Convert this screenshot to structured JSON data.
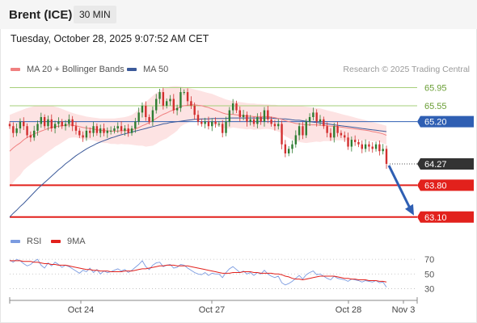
{
  "header": {
    "instrument": "Brent (ICE)",
    "timeframe": "30 MIN",
    "timestamp": "Tuesday, October 28, 2025 9:07:52 AM CET"
  },
  "legend": {
    "ma20": "MA 20 + Bollinger Bands",
    "ma50": "MA 50",
    "credit": "Research © 2025 Trading Central",
    "rsi": "RSI",
    "ma9": "9MA"
  },
  "colors": {
    "ma20": "#f08080",
    "ma50": "#3c5a9a",
    "bollinger_fill": "#fde0e0",
    "resistance": "#a6cf7a",
    "pivot": "#2f5fb3",
    "support": "#e2211c",
    "last": "#333333",
    "candle_up": "#2e7d32",
    "candle_down": "#d32f2f",
    "rsi": "#7b9be0",
    "rsi_ma": "#e2211c",
    "arrow": "#2f5fb3"
  },
  "chart_data": [
    {
      "type": "candlestick",
      "ylim": [
        62.9,
        66.1
      ],
      "x_ticks": [
        "Oct 24",
        "Oct 27",
        "Oct 28",
        "Nov 3"
      ],
      "levels": [
        {
          "name": "resistance-2",
          "value": 65.95,
          "label": "65.95",
          "style": "resistance"
        },
        {
          "name": "resistance-1",
          "value": 65.55,
          "label": "65.55",
          "style": "resistance"
        },
        {
          "name": "pivot",
          "value": 65.2,
          "label": "65.20",
          "style": "pivot"
        },
        {
          "name": "last-price",
          "value": 64.27,
          "label": "64.27",
          "style": "last"
        },
        {
          "name": "support-1",
          "value": 63.8,
          "label": "63.80",
          "style": "support"
        },
        {
          "name": "support-2",
          "value": 63.1,
          "label": "63.10",
          "style": "support"
        }
      ],
      "close": [
        65.1,
        64.95,
        65.05,
        65.2,
        65.1,
        64.9,
        64.85,
        65.0,
        65.15,
        65.3,
        65.1,
        65.25,
        65.05,
        65.15,
        65.2,
        65.1,
        65.15,
        65.25,
        65.1,
        65.0,
        64.9,
        64.85,
        65.0,
        64.95,
        65.1,
        64.95,
        65.05,
        64.95,
        65.0,
        65.0,
        65.05,
        65.1,
        65.0,
        65.05,
        64.95,
        65.05,
        65.2,
        65.4,
        65.55,
        65.3,
        65.2,
        65.45,
        65.7,
        65.85,
        65.55,
        65.65,
        65.7,
        65.45,
        65.5,
        65.85,
        65.85,
        65.65,
        65.55,
        65.35,
        65.2,
        65.15,
        65.2,
        65.1,
        65.2,
        65.15,
        65.15,
        64.95,
        65.2,
        65.45,
        65.6,
        65.45,
        65.3,
        65.35,
        65.2,
        65.25,
        65.15,
        65.3,
        65.2,
        65.45,
        65.25,
        65.15,
        65.1,
        65.15,
        64.7,
        64.5,
        64.6,
        64.7,
        64.9,
        65.1,
        64.9,
        65.2,
        65.3,
        65.4,
        65.2,
        65.25,
        65.1,
        64.95,
        64.85,
        65.1,
        64.95,
        64.9,
        64.85,
        64.65,
        64.8,
        64.75,
        64.7,
        64.6,
        64.7,
        64.65,
        64.6,
        64.7,
        64.55,
        64.6,
        64.27
      ],
      "ma20": [
        64.55,
        64.62,
        64.68,
        64.73,
        64.8,
        64.85,
        64.89,
        64.93,
        64.96,
        64.99,
        65.02,
        65.05,
        65.07,
        65.09,
        65.1,
        65.11,
        65.12,
        65.13,
        65.12,
        65.11,
        65.09,
        65.07,
        65.06,
        65.05,
        65.04,
        65.02,
        65.01,
        65.0,
        65.0,
        64.99,
        64.99,
        64.99,
        65.0,
        65.0,
        65.01,
        65.02,
        65.04,
        65.07,
        65.11,
        65.14,
        65.18,
        65.22,
        65.27,
        65.32,
        65.36,
        65.39,
        65.43,
        65.46,
        65.49,
        65.53,
        65.55,
        65.56,
        65.57,
        65.57,
        65.56,
        65.55,
        65.53,
        65.51,
        65.48,
        65.45,
        65.42,
        65.39,
        65.37,
        65.36,
        65.36,
        65.35,
        65.34,
        65.33,
        65.32,
        65.32,
        65.31,
        65.31,
        65.31,
        65.31,
        65.31,
        65.3,
        65.29,
        65.27,
        65.25,
        65.22,
        65.2,
        65.18,
        65.16,
        65.15,
        65.14,
        65.13,
        65.13,
        65.13,
        65.13,
        65.12,
        65.12,
        65.11,
        65.1,
        65.1,
        65.09,
        65.08,
        65.07,
        65.06,
        65.05,
        65.04,
        65.03,
        65.02,
        65.01,
        65.0,
        64.98,
        64.97,
        64.95,
        64.93,
        64.9
      ],
      "bb_upper": [
        65.35,
        65.38,
        65.41,
        65.44,
        65.47,
        65.5,
        65.52,
        65.54,
        65.55,
        65.56,
        65.56,
        65.56,
        65.55,
        65.53,
        65.51,
        65.48,
        65.45,
        65.42,
        65.39,
        65.37,
        65.35,
        65.33,
        65.31,
        65.3,
        65.29,
        65.28,
        65.27,
        65.27,
        65.27,
        65.27,
        65.27,
        65.28,
        65.29,
        65.3,
        65.32,
        65.35,
        65.4,
        65.47,
        65.55,
        65.63,
        65.7,
        65.77,
        65.83,
        65.88,
        65.92,
        65.95,
        65.97,
        65.98,
        65.98,
        65.97,
        65.96,
        65.95,
        65.93,
        65.91,
        65.89,
        65.87,
        65.85,
        65.83,
        65.81,
        65.78,
        65.75,
        65.72,
        65.69,
        65.67,
        65.65,
        65.64,
        65.63,
        65.62,
        65.61,
        65.6,
        65.6,
        65.59,
        65.59,
        65.58,
        65.58,
        65.57,
        65.57,
        65.56,
        65.56,
        65.56,
        65.56,
        65.56,
        65.55,
        65.55,
        65.54,
        65.53,
        65.52,
        65.51,
        65.5,
        65.49,
        65.47,
        65.45,
        65.43,
        65.41,
        65.39,
        65.37,
        65.35,
        65.33,
        65.31,
        65.29,
        65.27,
        65.25,
        65.23,
        65.21,
        65.19,
        65.17,
        65.15,
        65.13,
        65.11
      ],
      "bb_lower": [
        63.75,
        63.86,
        63.95,
        64.02,
        64.13,
        64.2,
        64.26,
        64.32,
        64.37,
        64.42,
        64.48,
        64.54,
        64.59,
        64.65,
        64.69,
        64.74,
        64.79,
        64.84,
        64.85,
        64.85,
        64.83,
        64.81,
        64.81,
        64.8,
        64.79,
        64.76,
        64.75,
        64.73,
        64.73,
        64.71,
        64.71,
        64.7,
        64.71,
        64.7,
        64.7,
        64.69,
        64.68,
        64.67,
        64.67,
        64.65,
        64.66,
        64.67,
        64.71,
        64.76,
        64.8,
        64.83,
        64.89,
        64.94,
        65.0,
        65.09,
        65.14,
        65.17,
        65.21,
        65.23,
        65.23,
        65.23,
        65.21,
        65.19,
        65.15,
        65.12,
        65.09,
        65.06,
        65.05,
        65.05,
        65.07,
        65.06,
        65.05,
        65.04,
        65.03,
        65.04,
        65.02,
        65.03,
        65.03,
        65.04,
        65.04,
        65.03,
        65.01,
        64.98,
        64.94,
        64.88,
        64.84,
        64.8,
        64.77,
        64.75,
        64.74,
        64.73,
        64.74,
        64.75,
        64.76,
        64.75,
        64.77,
        64.77,
        64.77,
        64.79,
        64.79,
        64.79,
        64.79,
        64.79,
        64.79,
        64.79,
        64.79,
        64.79,
        64.79,
        64.79,
        64.77,
        64.77,
        64.75,
        64.73,
        64.69
      ],
      "ma50": [
        63.1,
        63.18,
        63.25,
        63.33,
        63.4,
        63.48,
        63.56,
        63.64,
        63.72,
        63.79,
        63.86,
        63.93,
        64.0,
        64.07,
        64.14,
        64.2,
        64.27,
        64.33,
        64.39,
        64.45,
        64.5,
        64.55,
        64.6,
        64.64,
        64.68,
        64.72,
        64.75,
        64.78,
        64.81,
        64.84,
        64.86,
        64.89,
        64.91,
        64.93,
        64.95,
        64.97,
        64.99,
        65.01,
        65.03,
        65.05,
        65.07,
        65.09,
        65.11,
        65.13,
        65.15,
        65.16,
        65.18,
        65.19,
        65.2,
        65.21,
        65.22,
        65.23,
        65.24,
        65.25,
        65.25,
        65.26,
        65.26,
        65.26,
        65.27,
        65.27,
        65.27,
        65.27,
        65.27,
        65.28,
        65.28,
        65.28,
        65.28,
        65.28,
        65.28,
        65.28,
        65.28,
        65.28,
        65.28,
        65.28,
        65.28,
        65.28,
        65.27,
        65.27,
        65.26,
        65.26,
        65.25,
        65.24,
        65.23,
        65.23,
        65.22,
        65.21,
        65.2,
        65.19,
        65.18,
        65.17,
        65.16,
        65.15,
        65.14,
        65.13,
        65.12,
        65.11,
        65.1,
        65.09,
        65.08,
        65.07,
        65.06,
        65.05,
        65.04,
        65.03,
        65.02,
        65.01,
        65.0,
        64.99,
        64.98
      ]
    },
    {
      "type": "line",
      "name": "RSI",
      "ylim": [
        25,
        80
      ],
      "y_ticks": [
        70,
        50,
        30
      ],
      "rsi": [
        69,
        66,
        70,
        68,
        64,
        61,
        63,
        67,
        70,
        62,
        58,
        65,
        61,
        66,
        63,
        59,
        62,
        60,
        57,
        54,
        51,
        55,
        53,
        58,
        52,
        56,
        50,
        54,
        52,
        53,
        55,
        57,
        54,
        56,
        52,
        55,
        59,
        63,
        68,
        60,
        56,
        62,
        65,
        66,
        60,
        62,
        63,
        58,
        59,
        63,
        62,
        58,
        55,
        52,
        50,
        49,
        52,
        48,
        51,
        50,
        50,
        45,
        52,
        57,
        60,
        56,
        52,
        54,
        50,
        52,
        48,
        52,
        50,
        55,
        50,
        47,
        45,
        47,
        38,
        35,
        37,
        40,
        44,
        48,
        43,
        49,
        52,
        54,
        49,
        50,
        47,
        44,
        42,
        47,
        44,
        43,
        42,
        40,
        43,
        42,
        41,
        39,
        41,
        40,
        39,
        41,
        38,
        39,
        32
      ],
      "ma9": [
        68,
        68,
        68,
        68,
        67,
        67,
        67,
        66,
        66,
        65,
        64,
        64,
        63,
        63,
        62,
        62,
        62,
        61,
        60,
        59,
        58,
        57,
        56,
        56,
        55,
        55,
        54,
        54,
        54,
        53,
        53,
        53,
        53,
        54,
        54,
        54,
        55,
        56,
        57,
        57,
        58,
        59,
        60,
        61,
        61,
        62,
        62,
        62,
        61,
        61,
        61,
        61,
        60,
        59,
        58,
        57,
        56,
        55,
        54,
        53,
        52,
        51,
        51,
        51,
        52,
        52,
        52,
        53,
        53,
        53,
        52,
        52,
        51,
        51,
        51,
        51,
        50,
        50,
        49,
        47,
        46,
        44,
        43,
        43,
        42,
        43,
        44,
        45,
        46,
        47,
        47,
        47,
        47,
        47,
        46,
        45,
        44,
        44,
        43,
        43,
        42,
        42,
        42,
        41,
        41,
        41,
        40,
        40,
        39
      ]
    }
  ]
}
